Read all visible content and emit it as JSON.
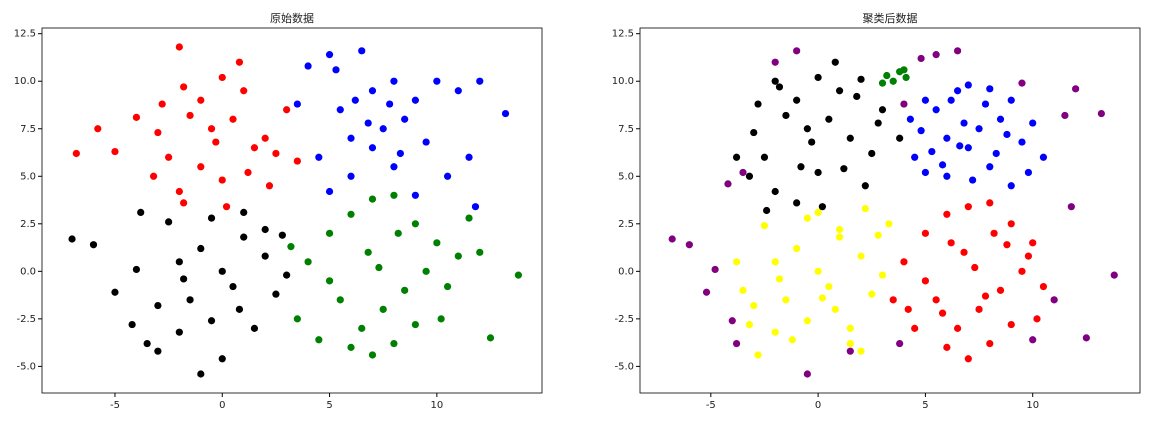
{
  "chart_data": [
    {
      "type": "scatter",
      "title": "原始数据",
      "xlim": [
        -8.4,
        14.9
      ],
      "ylim": [
        -6.4,
        12.8
      ],
      "xticks": [
        -5,
        0,
        5,
        10
      ],
      "yticks": [
        {
          "value": -5,
          "label": "-5.0"
        },
        {
          "value": -2.5,
          "label": "-2.5"
        },
        {
          "value": 0,
          "label": "0.0"
        },
        {
          "value": 2.5,
          "label": "2.5"
        },
        {
          "value": 5,
          "label": "5.0"
        },
        {
          "value": 7.5,
          "label": "7.5"
        },
        {
          "value": 10,
          "label": "10.0"
        },
        {
          "value": 12.5,
          "label": "12.5"
        }
      ],
      "series": [
        {
          "color": "red",
          "x": [
            -2,
            -1,
            0,
            1,
            -1.5,
            -0.5,
            0.5,
            2,
            -3,
            -2.5,
            1.5,
            -1,
            0,
            2.5,
            -2,
            -3.2,
            3,
            0.8,
            -0.3,
            -1.8,
            1.2,
            -2.8,
            2.2,
            -6.8,
            -5.8,
            -5,
            -1.8,
            0.2,
            -4,
            3.5
          ],
          "values": [
            11.8,
            9,
            10.2,
            9.5,
            8.2,
            7.5,
            8,
            7,
            7.3,
            6,
            6.5,
            5.5,
            4.8,
            6.2,
            4.2,
            5,
            8.5,
            11,
            6.8,
            9.7,
            5.2,
            8.8,
            4.5,
            6.2,
            7.5,
            6.3,
            3.6,
            3.4,
            8.1,
            5.8
          ]
        },
        {
          "color": "blue",
          "x": [
            5,
            6.5,
            7,
            8,
            9,
            5.5,
            6,
            7.5,
            8.5,
            10,
            11,
            12,
            13.2,
            4,
            4.5,
            6,
            7,
            8,
            9.5,
            10.5,
            11.5,
            5,
            6.2,
            7.8,
            9,
            3.5,
            5.3,
            8.3,
            11.8,
            6.8
          ],
          "values": [
            11.4,
            11.6,
            9.5,
            10,
            9,
            8.5,
            7,
            7.5,
            8,
            10,
            9.5,
            10,
            8.3,
            10.8,
            6,
            5,
            6.5,
            5.5,
            6.8,
            5,
            6,
            4.2,
            9,
            8.8,
            4,
            8.8,
            10.6,
            6.2,
            3.4,
            7.8
          ]
        },
        {
          "color": "black",
          "x": [
            -7,
            -6,
            -5,
            -4,
            -3,
            -3.5,
            -2,
            -1,
            0,
            1,
            2,
            3,
            -2.5,
            -1.5,
            -0.5,
            0.5,
            1.5,
            2.5,
            -4.2,
            -3,
            -2,
            0,
            1,
            2,
            -1,
            -0.5,
            -3.8,
            0.8,
            2.8,
            -1.8
          ],
          "values": [
            1.7,
            1.4,
            -1.1,
            0.1,
            -1.8,
            -3.8,
            0.5,
            1.2,
            0,
            1.8,
            0.8,
            -0.2,
            2.6,
            -1.5,
            -2.6,
            -0.8,
            -3,
            -1.2,
            -2.8,
            -4.2,
            -3.2,
            -4.6,
            3.1,
            2.2,
            -5.4,
            2.8,
            3.1,
            -2,
            1.9,
            -0.4
          ]
        },
        {
          "color": "green",
          "x": [
            4,
            5,
            6,
            7,
            8,
            9,
            10,
            11,
            12.5,
            13.8,
            5.5,
            6.5,
            7.5,
            8.5,
            9.5,
            10.5,
            3.5,
            4.5,
            6,
            7,
            8,
            9,
            6.8,
            5,
            7.3,
            11.5,
            3.2,
            8.2,
            10.2,
            12
          ],
          "values": [
            0.5,
            2,
            3,
            3.8,
            4,
            2.5,
            1.5,
            0.8,
            -3.5,
            -0.2,
            -1.5,
            -3,
            -2,
            -1,
            0,
            -0.8,
            -2.5,
            -3.6,
            -4,
            -4.4,
            -3.8,
            -2.8,
            1,
            -0.5,
            0.2,
            2.8,
            1.3,
            2,
            -2.5,
            1
          ]
        }
      ]
    },
    {
      "type": "scatter",
      "title": "聚类后数据",
      "xlim": [
        -8.3,
        15.0
      ],
      "ylim": [
        -6.4,
        12.8
      ],
      "xticks": [
        -5,
        0,
        5,
        10
      ],
      "yticks": [
        {
          "value": -5,
          "label": "-5.0"
        },
        {
          "value": -2.5,
          "label": "-2.5"
        },
        {
          "value": 0,
          "label": "0.0"
        },
        {
          "value": 2.5,
          "label": "2.5"
        },
        {
          "value": 5,
          "label": "5.0"
        },
        {
          "value": 7.5,
          "label": "7.5"
        },
        {
          "value": 10,
          "label": "10.0"
        },
        {
          "value": 12.5,
          "label": "12.5"
        }
      ],
      "series": [
        {
          "color": "black",
          "x": [
            -2,
            -1,
            0,
            1,
            2,
            -1.5,
            -0.5,
            0.5,
            1.5,
            -3,
            -2.5,
            0,
            2.5,
            -2,
            -3.2,
            3,
            0.8,
            -0.3,
            -1.8,
            1.2,
            -2.8,
            2.2,
            -3.8,
            -1,
            3.8,
            0.2,
            -0.8,
            1.8,
            2.8,
            -2.4
          ],
          "values": [
            10,
            9,
            10.2,
            9.5,
            10.1,
            8.2,
            7.5,
            8,
            7,
            7.3,
            6,
            5.2,
            6.2,
            4.2,
            5,
            8.5,
            11,
            6.8,
            9.7,
            5.4,
            8.8,
            4.5,
            6,
            3.6,
            7,
            3.4,
            5.5,
            9.2,
            7.8,
            3.2
          ]
        },
        {
          "color": "blue",
          "x": [
            5,
            6.5,
            7,
            8,
            9,
            5.5,
            6,
            7.5,
            8.5,
            10,
            4.3,
            4.5,
            6,
            7,
            8,
            9.5,
            6.2,
            7.8,
            9,
            5.3,
            8.3,
            6.8,
            10.5,
            4.8,
            5.8,
            7.2,
            8.8,
            9.8,
            5,
            6.6
          ],
          "values": [
            9,
            9.5,
            9.8,
            9.6,
            9,
            8.5,
            7,
            7.5,
            8,
            7.8,
            8,
            6,
            5,
            6.5,
            5.5,
            6.8,
            9,
            8.8,
            4.5,
            6.3,
            6.2,
            7.8,
            6,
            7.4,
            5.6,
            4.8,
            7.2,
            5.2,
            5.2,
            6.6
          ]
        },
        {
          "color": "yellow",
          "x": [
            -3.5,
            -3,
            -2,
            -1,
            0,
            1,
            2,
            3,
            -2.5,
            -1.5,
            -0.5,
            0.5,
            1.5,
            2.5,
            -3.2,
            -2,
            0,
            1,
            2,
            -0.5,
            0.8,
            2.8,
            -1.8,
            -3.8,
            1.5,
            -2.8,
            3.3,
            0.2,
            -1.2,
            2.2
          ],
          "values": [
            -1,
            -1.8,
            0.5,
            1.2,
            0,
            1.8,
            0.8,
            -0.2,
            2.4,
            -1.5,
            -2.6,
            -0.8,
            -3,
            -1.2,
            -2.8,
            -3.2,
            3.1,
            2.2,
            -4.2,
            2.8,
            -2,
            1.9,
            -0.4,
            0.5,
            -3.8,
            -4.4,
            2.5,
            -1.4,
            -3.6,
            3.3
          ]
        },
        {
          "color": "red",
          "x": [
            4,
            5,
            6,
            7,
            8,
            9,
            10,
            5.5,
            6.5,
            7.5,
            8.5,
            9.5,
            10.5,
            3.5,
            4.5,
            6,
            7,
            8,
            9,
            6.8,
            5,
            7.3,
            8.2,
            10.2,
            4.2,
            6.2,
            7.8,
            9.8,
            5.8,
            8.8
          ],
          "values": [
            0.5,
            2,
            3,
            3.4,
            3.6,
            2.5,
            1.5,
            -1.5,
            -3,
            -2,
            -1,
            0,
            -0.8,
            -1.5,
            -3,
            -4,
            -4.6,
            -3.8,
            -2.8,
            1,
            -0.5,
            0.2,
            2,
            -2.5,
            -2,
            1.5,
            -1.3,
            0.8,
            -2.2,
            1.4
          ]
        },
        {
          "color": "green",
          "x": [
            3.2,
            3.5,
            3.8,
            4.1,
            3.0,
            4.0
          ],
          "values": [
            10.3,
            10,
            10.5,
            10.2,
            9.9,
            10.6
          ]
        },
        {
          "color": "purple",
          "x": [
            -6.8,
            -6,
            -5.2,
            -4,
            -4.8,
            -3.8,
            1.5,
            -0.5,
            -2,
            -1,
            4,
            3.8,
            12,
            11.5,
            13.2,
            12.5,
            13.8,
            10,
            11,
            9.5,
            4.8,
            5.5,
            6.5,
            11.8,
            -3.5,
            -4.2
          ],
          "values": [
            1.7,
            1.4,
            -1.1,
            -2.6,
            0.1,
            -3.8,
            -4.2,
            -5.4,
            11,
            11.6,
            8.8,
            -3.8,
            9.6,
            8.2,
            8.3,
            -3.5,
            -0.2,
            -3.6,
            -1.5,
            9.9,
            11.2,
            11.4,
            11.6,
            3.4,
            5.2,
            4.6
          ]
        }
      ]
    }
  ]
}
